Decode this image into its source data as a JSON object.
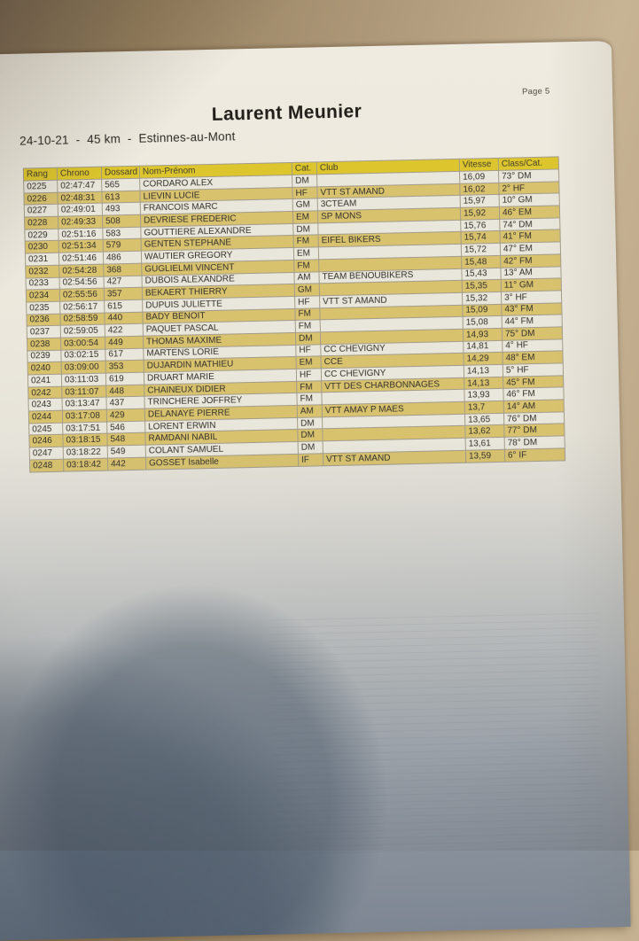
{
  "photo": {
    "page_label": "Page 5"
  },
  "header": {
    "title": "Laurent Meunier",
    "subtitle": "24-10-21  -  45 km  -  Estinnes-au-Mont"
  },
  "table": {
    "columns": [
      "Rang",
      "Chrono",
      "Dossard",
      "Nom-Prénom",
      "Cat.",
      "Club",
      "Vitesse",
      "Class/Cat."
    ],
    "rows": [
      {
        "rang": "0225",
        "chrono": "02:47:47",
        "dossard": "565",
        "nom": "CORDARO ALEX",
        "cat": "DM",
        "club": "",
        "vitesse": "16,09",
        "classcat": "73° DM"
      },
      {
        "rang": "0226",
        "chrono": "02:48:31",
        "dossard": "613",
        "nom": "LIEVIN LUCIE",
        "cat": "HF",
        "club": "VTT ST AMAND",
        "vitesse": "16,02",
        "classcat": "2° HF"
      },
      {
        "rang": "0227",
        "chrono": "02:49:01",
        "dossard": "493",
        "nom": "FRANCOIS MARC",
        "cat": "GM",
        "club": "3CTEAM",
        "vitesse": "15,97",
        "classcat": "10° GM"
      },
      {
        "rang": "0228",
        "chrono": "02:49:33",
        "dossard": "508",
        "nom": "DEVRIESE FREDERIC",
        "cat": "EM",
        "club": "SP MONS",
        "vitesse": "15,92",
        "classcat": "46° EM"
      },
      {
        "rang": "0229",
        "chrono": "02:51:16",
        "dossard": "583",
        "nom": "GOUTTIERE ALEXANDRE",
        "cat": "DM",
        "club": "",
        "vitesse": "15,76",
        "classcat": "74° DM"
      },
      {
        "rang": "0230",
        "chrono": "02:51:34",
        "dossard": "579",
        "nom": "GENTEN STEPHANE",
        "cat": "FM",
        "club": "EIFEL BIKERS",
        "vitesse": "15,74",
        "classcat": "41° FM"
      },
      {
        "rang": "0231",
        "chrono": "02:51:46",
        "dossard": "486",
        "nom": "WAUTIER GREGORY",
        "cat": "EM",
        "club": "",
        "vitesse": "15,72",
        "classcat": "47° EM"
      },
      {
        "rang": "0232",
        "chrono": "02:54:28",
        "dossard": "368",
        "nom": "GUGLIELMI VINCENT",
        "cat": "FM",
        "club": "",
        "vitesse": "15,48",
        "classcat": "42° FM"
      },
      {
        "rang": "0233",
        "chrono": "02:54:56",
        "dossard": "427",
        "nom": "DUBOIS ALEXANDRE",
        "cat": "AM",
        "club": "TEAM BENOUBIKERS",
        "vitesse": "15,43",
        "classcat": "13° AM"
      },
      {
        "rang": "0234",
        "chrono": "02:55:56",
        "dossard": "357",
        "nom": "BEKAERT THIERRY",
        "cat": "GM",
        "club": "",
        "vitesse": "15,35",
        "classcat": "11° GM"
      },
      {
        "rang": "0235",
        "chrono": "02:56:17",
        "dossard": "615",
        "nom": "DUPUIS JULIETTE",
        "cat": "HF",
        "club": "VTT ST AMAND",
        "vitesse": "15,32",
        "classcat": "3° HF"
      },
      {
        "rang": "0236",
        "chrono": "02:58:59",
        "dossard": "440",
        "nom": "BADY BENOIT",
        "cat": "FM",
        "club": "",
        "vitesse": "15,09",
        "classcat": "43° FM"
      },
      {
        "rang": "0237",
        "chrono": "02:59:05",
        "dossard": "422",
        "nom": "PAQUET PASCAL",
        "cat": "FM",
        "club": "",
        "vitesse": "15,08",
        "classcat": "44° FM"
      },
      {
        "rang": "0238",
        "chrono": "03:00:54",
        "dossard": "449",
        "nom": "THOMAS MAXIME",
        "cat": "DM",
        "club": "",
        "vitesse": "14,93",
        "classcat": "75° DM"
      },
      {
        "rang": "0239",
        "chrono": "03:02:15",
        "dossard": "617",
        "nom": "MARTENS LORIE",
        "cat": "HF",
        "club": "CC CHEVIGNY",
        "vitesse": "14,81",
        "classcat": "4° HF"
      },
      {
        "rang": "0240",
        "chrono": "03:09:00",
        "dossard": "353",
        "nom": "DUJARDIN MATHIEU",
        "cat": "EM",
        "club": "CCE",
        "vitesse": "14,29",
        "classcat": "48° EM"
      },
      {
        "rang": "0241",
        "chrono": "03:11:03",
        "dossard": "619",
        "nom": "DRUART MARIE",
        "cat": "HF",
        "club": "CC CHEVIGNY",
        "vitesse": "14,13",
        "classcat": "5° HF"
      },
      {
        "rang": "0242",
        "chrono": "03:11:07",
        "dossard": "448",
        "nom": "CHAINEUX DIDIER",
        "cat": "FM",
        "club": "VTT DES CHARBONNAGES",
        "vitesse": "14,13",
        "classcat": "45° FM"
      },
      {
        "rang": "0243",
        "chrono": "03:13:47",
        "dossard": "437",
        "nom": "TRINCHERE JOFFREY",
        "cat": "FM",
        "club": "",
        "vitesse": "13,93",
        "classcat": "46° FM"
      },
      {
        "rang": "0244",
        "chrono": "03:17:08",
        "dossard": "429",
        "nom": "DELANAYE PIERRE",
        "cat": "AM",
        "club": "VTT AMAY P MAES",
        "vitesse": "13,7",
        "classcat": "14° AM"
      },
      {
        "rang": "0245",
        "chrono": "03:17:51",
        "dossard": "546",
        "nom": "LORENT ERWIN",
        "cat": "DM",
        "club": "",
        "vitesse": "13,65",
        "classcat": "76° DM"
      },
      {
        "rang": "0246",
        "chrono": "03:18:15",
        "dossard": "548",
        "nom": "RAMDANI NABIL",
        "cat": "DM",
        "club": "",
        "vitesse": "13,62",
        "classcat": "77° DM"
      },
      {
        "rang": "0247",
        "chrono": "03:18:22",
        "dossard": "549",
        "nom": "COLANT SAMUEL",
        "cat": "DM",
        "club": "",
        "vitesse": "13,61",
        "classcat": "78° DM"
      },
      {
        "rang": "0248",
        "chrono": "03:18:42",
        "dossard": "442",
        "nom": "GOSSET Isabelle",
        "cat": "IF",
        "club": "VTT ST AMAND",
        "vitesse": "13,59",
        "classcat": "6° IF"
      }
    ]
  },
  "colors": {
    "header_yellow": "#ddc62d",
    "row_yellow": "#d8c26e",
    "row_plain": "#e9e6db",
    "paper": "#ebe7dc",
    "table_surface": "#ae997a",
    "shadow_blue": "#5f7083"
  }
}
